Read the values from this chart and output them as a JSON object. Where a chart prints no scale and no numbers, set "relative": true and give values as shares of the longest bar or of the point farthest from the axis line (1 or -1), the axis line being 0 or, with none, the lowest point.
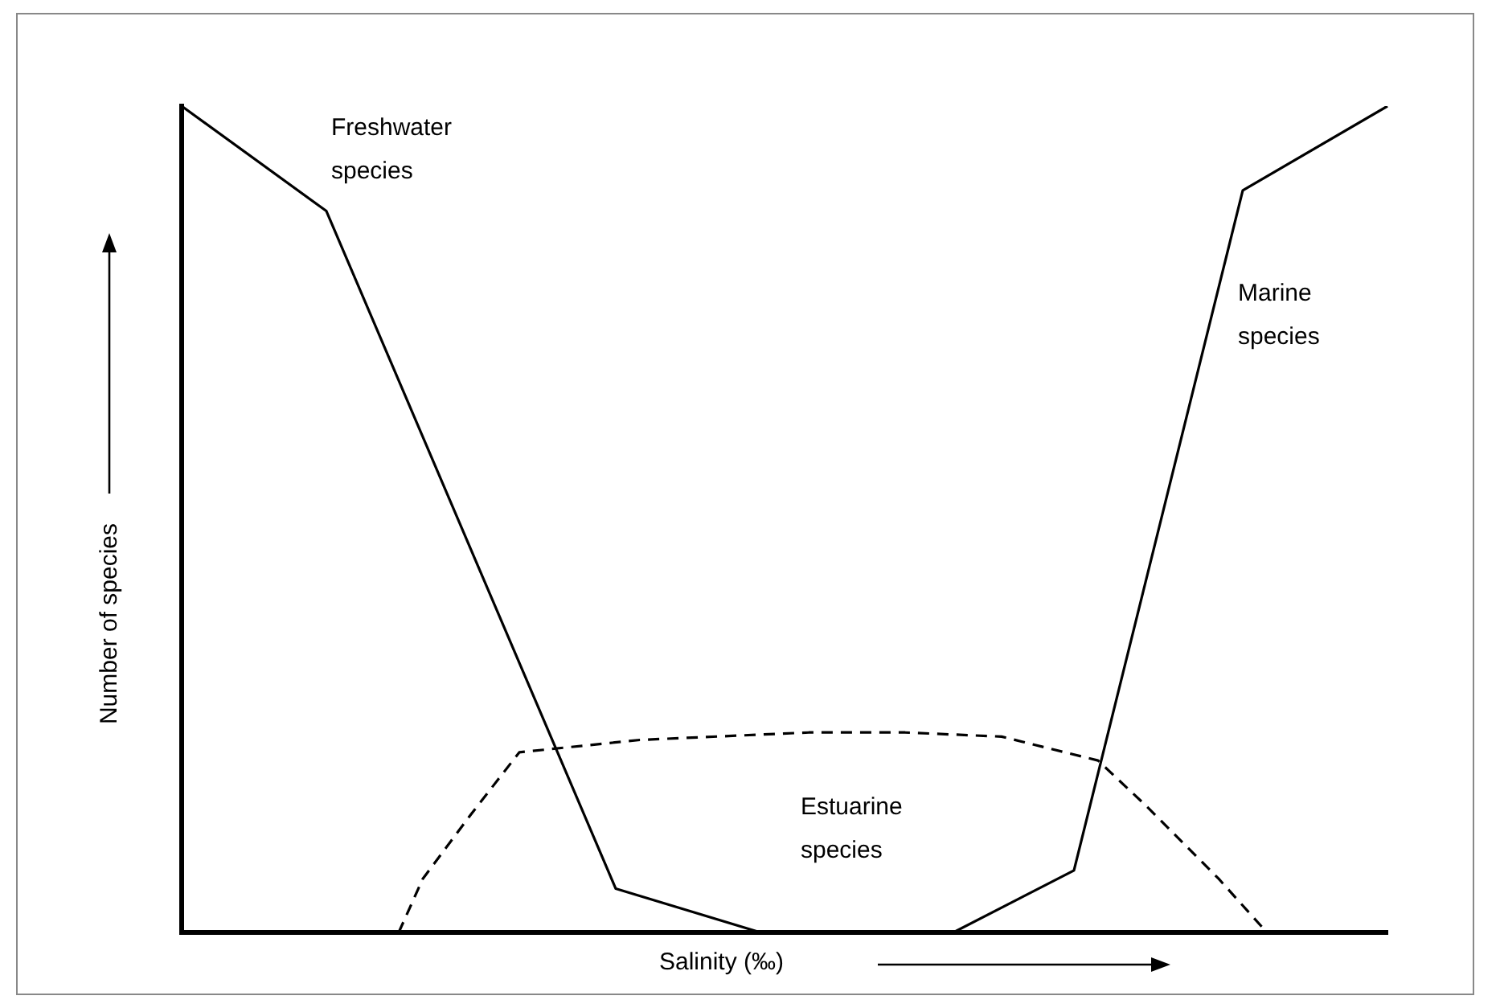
{
  "chart_data": {
    "type": "line",
    "relative": true,
    "xlabel": "Salinity (‰)",
    "ylabel": "Number of species",
    "grid": false,
    "legend": false,
    "tick_labels": false,
    "marker": "none",
    "categories": [
      null,
      null,
      null,
      null,
      null,
      null,
      null,
      null,
      null,
      null,
      null,
      null,
      null,
      null,
      null,
      null,
      null,
      null,
      null,
      null,
      null,
      null,
      null,
      null,
      null,
      null,
      null,
      null,
      null,
      null,
      null,
      null,
      null,
      null,
      null,
      null,
      null,
      null,
      null,
      null,
      null,
      null,
      null,
      null,
      null,
      null,
      null,
      null,
      null,
      null,
      null
    ],
    "series": [
      {
        "name": "Freshwater species",
        "color": "#000000",
        "line_style": "solid",
        "values": [
          1,
          null,
          null,
          null,
          null,
          null,
          0.873,
          null,
          null,
          null,
          null,
          null,
          null,
          null,
          null,
          null,
          null,
          null,
          0.053,
          null,
          null,
          null,
          null,
          null,
          0,
          null,
          null,
          null,
          null,
          null,
          null,
          null,
          null,
          null,
          null,
          null,
          null,
          null,
          null,
          null,
          null,
          null,
          null,
          null,
          null,
          null,
          null,
          null,
          null,
          null,
          null
        ]
      },
      {
        "name": "Estuarine species",
        "color": "#000000",
        "line_style": "dashed",
        "values": [
          null,
          null,
          null,
          null,
          null,
          null,
          null,
          null,
          null,
          0,
          0.065,
          null,
          0.143,
          null,
          0.218,
          null,
          null,
          null,
          null,
          0.233,
          null,
          null,
          null,
          null,
          null,
          null,
          0.242,
          null,
          null,
          null,
          0.242,
          null,
          null,
          null,
          0.237,
          null,
          null,
          null,
          0.208,
          null,
          0.153,
          null,
          null,
          0.065,
          null,
          0,
          null,
          null,
          null,
          null,
          null
        ]
      },
      {
        "name": "Marine species",
        "color": "#000000",
        "line_style": "solid",
        "values": [
          null,
          null,
          null,
          null,
          null,
          null,
          null,
          null,
          null,
          null,
          null,
          null,
          null,
          null,
          null,
          null,
          null,
          null,
          null,
          null,
          null,
          null,
          null,
          null,
          null,
          null,
          null,
          null,
          null,
          null,
          null,
          null,
          0,
          null,
          null,
          null,
          null,
          0.075,
          null,
          null,
          null,
          null,
          null,
          null,
          0.898,
          null,
          null,
          null,
          null,
          null,
          1
        ]
      }
    ]
  }
}
